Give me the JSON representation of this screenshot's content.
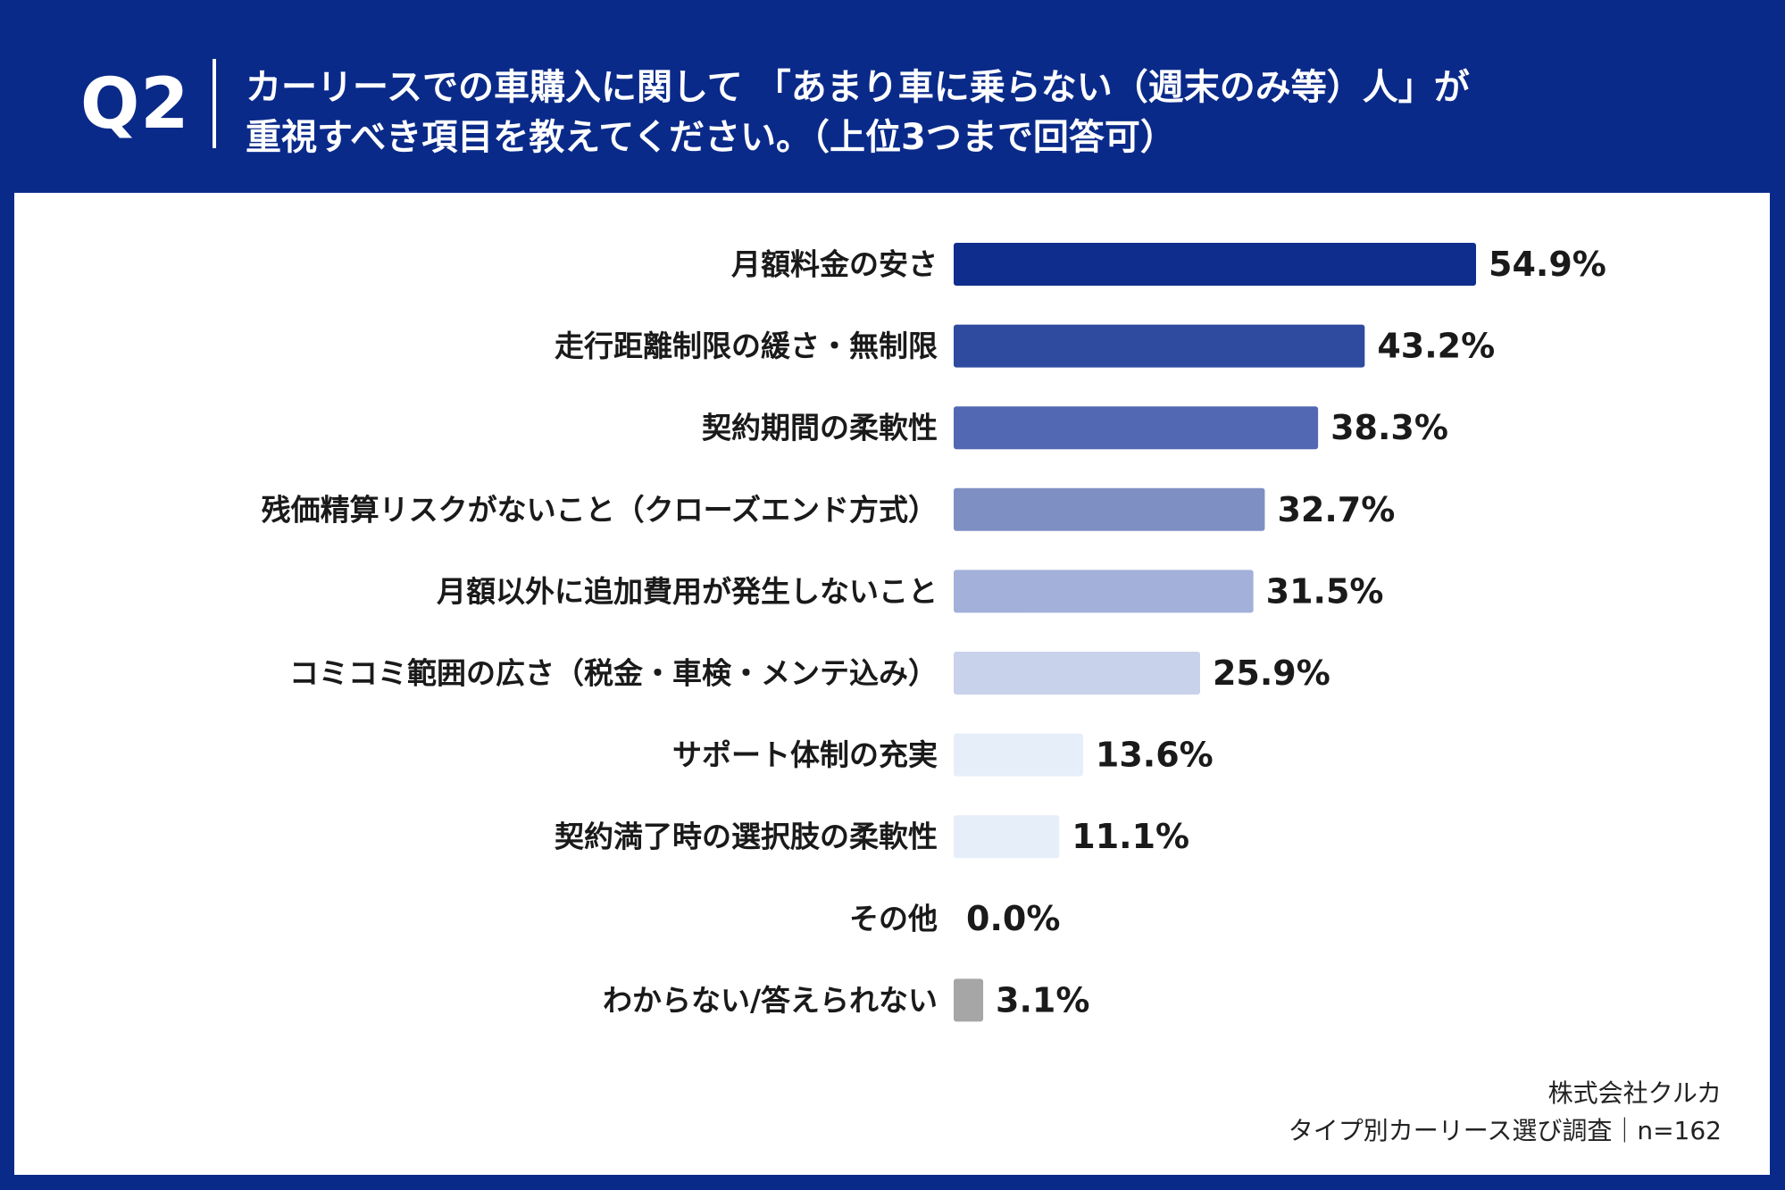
{
  "header": {
    "q_label": "Q2",
    "title_line1": "カーリースでの車購入に関して 「あまり車に乗らない（週末のみ等）人」が",
    "title_line2": "重視すべき項目を教えてください。（上位3つまで回答可）"
  },
  "colors": {
    "background": "#0a2a8a",
    "panel": "#ffffff"
  },
  "chart_data": {
    "type": "bar",
    "orientation": "horizontal",
    "categories": [
      "月額料金の安さ",
      "走行距離制限の緩さ・無制限",
      "契約期間の柔軟性",
      "残価精算リスクがないこと（クローズエンド方式）",
      "月額以外に追加費用が発生しないこと",
      "コミコミ範囲の広さ（税金・車検・メンテ込み）",
      "サポート体制の充実",
      "契約満了時の選択肢の柔軟性",
      "その他",
      "わからない/答えられない"
    ],
    "values": [
      54.9,
      43.2,
      38.3,
      32.7,
      31.5,
      25.9,
      13.6,
      11.1,
      0.0,
      3.1
    ],
    "value_labels": [
      "54.9%",
      "43.2%",
      "38.3%",
      "32.7%",
      "31.5%",
      "25.9%",
      "13.6%",
      "11.1%",
      "0.0%",
      "3.1%"
    ],
    "bar_colors": [
      "#0f2d8c",
      "#2f4ba0",
      "#5368b2",
      "#7e8fc4",
      "#a3b0da",
      "#c8d2ea",
      "#e6eefa",
      "#e6eefa",
      "#e6eefa",
      "#a6a6a6"
    ],
    "xlim": [
      0,
      60
    ],
    "grid": false,
    "legend": "none"
  },
  "footer": {
    "company": "株式会社クルカ",
    "survey": "タイプ別カーリース選び調査｜n=162"
  }
}
